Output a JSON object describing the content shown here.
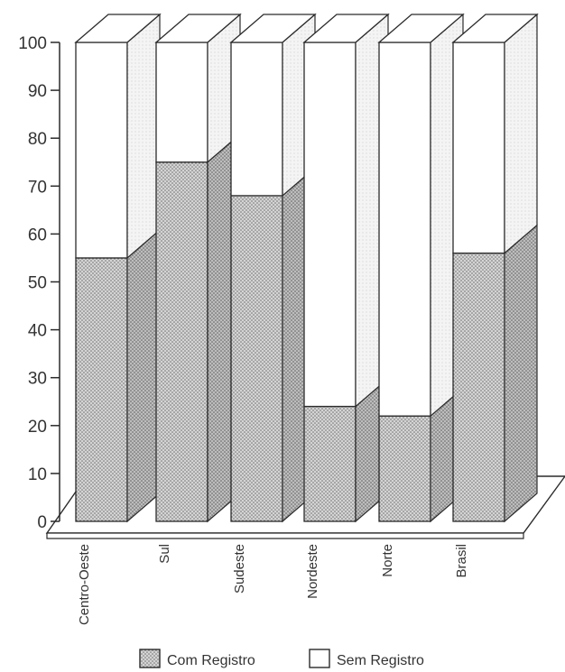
{
  "chart_data": {
    "type": "bar",
    "stacked": true,
    "three_d": true,
    "categories": [
      "Centro-Oeste",
      "Sul",
      "Sudeste",
      "Nordeste",
      "Norte",
      "Brasil"
    ],
    "series": [
      {
        "name": "Com Registro",
        "values": [
          55,
          75,
          68,
          24,
          22,
          56
        ],
        "pattern": "dotted-gray"
      },
      {
        "name": "Sem Registro",
        "values": [
          45,
          25,
          32,
          76,
          78,
          44
        ],
        "pattern": "white"
      }
    ],
    "yticks": [
      0,
      10,
      20,
      30,
      40,
      50,
      60,
      70,
      80,
      90,
      100
    ],
    "ylim": [
      0,
      100
    ],
    "grid": false,
    "legend_position": "bottom",
    "colors": {
      "shade": "#d2d2d2",
      "shade_side": "#bdbdbd",
      "dot": "#6f6f6f",
      "line": "#2b2b2b",
      "white": "#ffffff"
    }
  }
}
